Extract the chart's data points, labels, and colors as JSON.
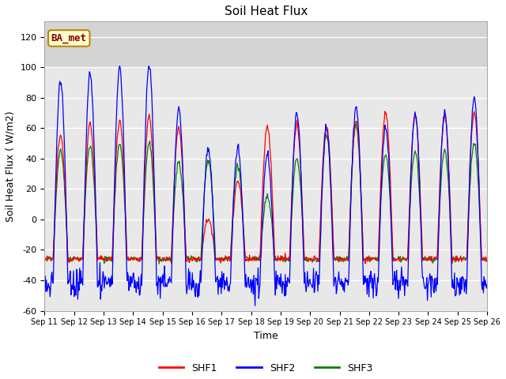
{
  "title": "Soil Heat Flux",
  "xlabel": "Time",
  "ylabel": "Soil Heat Flux ( W/m2)",
  "ylim": [
    -60,
    130
  ],
  "yticks": [
    -60,
    -40,
    -20,
    0,
    20,
    40,
    60,
    80,
    100,
    120
  ],
  "legend_label": "BA_met",
  "series_labels": [
    "SHF1",
    "SHF2",
    "SHF3"
  ],
  "series_colors": [
    "red",
    "blue",
    "green"
  ],
  "start_day": 11,
  "end_day": 26,
  "n_days": 15,
  "points_per_day": 48,
  "fig_bg": "#ffffff",
  "plot_bg": "#e8e8e8",
  "shf1_peaks": [
    55,
    63,
    65,
    67,
    60,
    0,
    25,
    61,
    62,
    62,
    65,
    70,
    68,
    68,
    70
  ],
  "shf2_peaks": [
    91,
    96,
    99,
    101,
    73,
    46,
    47,
    43,
    69,
    60,
    75,
    60,
    70,
    70,
    80
  ],
  "shf3_peaks": [
    45,
    48,
    50,
    50,
    38,
    38,
    35,
    15,
    40,
    55,
    62,
    42,
    45,
    45,
    50
  ],
  "shf1_min": -26,
  "shf2_min": -42,
  "shf3_min": -26,
  "seed": 12345
}
